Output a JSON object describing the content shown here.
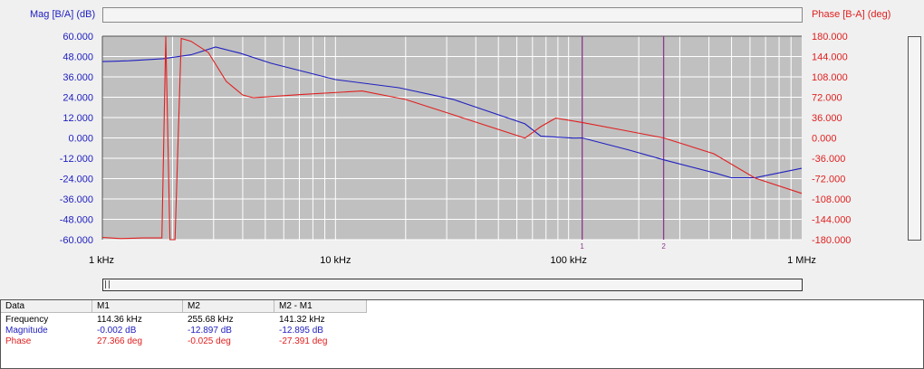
{
  "chart_data": {
    "type": "line",
    "left_axis_label": "Mag [B/A] (dB)",
    "right_axis_label": "Phase [B-A] (deg)",
    "x_scale": "log",
    "xlim_hz": [
      1000,
      1000000
    ],
    "x_ticks": [
      {
        "value": 1000,
        "label": "1 kHz"
      },
      {
        "value": 10000,
        "label": "10 kHz"
      },
      {
        "value": 100000,
        "label": "100 kHz"
      },
      {
        "value": 1000000,
        "label": "1 MHz"
      }
    ],
    "ylim_left": [
      -60,
      60
    ],
    "ylim_right": [
      -180,
      180
    ],
    "left_ticks": [
      "60.000",
      "48.000",
      "36.000",
      "24.000",
      "12.000",
      "0.000",
      "-12.000",
      "-24.000",
      "-36.000",
      "-48.000",
      "-60.000"
    ],
    "right_ticks": [
      "180.000",
      "144.000",
      "108.000",
      "72.000",
      "36.000",
      "0.000",
      "-36.000",
      "-72.000",
      "-108.000",
      "-144.000",
      "-180.000"
    ],
    "grid": true,
    "colors": {
      "magnitude": "#2020c0",
      "phase": "#e02020",
      "marker": "#8a3a8a",
      "plot_bg": "#c0c0c0",
      "grid": "#ffffff"
    },
    "series": [
      {
        "name": "Magnitude",
        "axis": "left",
        "x": [
          1000,
          1300,
          1820,
          2400,
          3060,
          3900,
          5300,
          10000,
          18700,
          32000,
          65000,
          76000,
          105000,
          114360,
          180000,
          255680,
          430000,
          500000,
          630000,
          1000000
        ],
        "y": [
          45,
          45.5,
          46.7,
          49,
          53.6,
          50,
          44,
          34.4,
          29.6,
          22.7,
          8.3,
          1,
          -0.1,
          -0.002,
          -7,
          -12.9,
          -20.9,
          -23.5,
          -23.5,
          -17.9
        ]
      },
      {
        "name": "Phase",
        "axis": "right",
        "x": [
          1000,
          1200,
          1500,
          1800,
          1870,
          1950,
          2050,
          2180,
          2400,
          2850,
          3400,
          4000,
          4450,
          7200,
          13000,
          20000,
          32000,
          65000,
          76000,
          88000,
          114360,
          180000,
          255680,
          420000,
          630000,
          1000000
        ],
        "y": [
          -176,
          -178,
          -177,
          -177,
          180,
          -180,
          -180,
          176,
          171,
          151,
          100,
          76,
          71,
          77,
          83,
          68,
          41,
          -0.3,
          20,
          35,
          27.366,
          12,
          -0.025,
          -28,
          -71,
          -98
        ]
      }
    ],
    "markers": [
      {
        "label": "1",
        "x": 114360
      },
      {
        "label": "2",
        "x": 255680
      }
    ]
  },
  "table": {
    "headers": [
      "Data",
      "M1",
      "M2",
      "M2 - M1"
    ],
    "rows": [
      {
        "label": "Frequency",
        "values": [
          "114.36 kHz",
          "255.68 kHz",
          "141.32 kHz"
        ]
      },
      {
        "label": "Magnitude",
        "values": [
          "-0.002 dB",
          "-12.897 dB",
          "-12.895 dB"
        ]
      },
      {
        "label": "Phase",
        "values": [
          "27.366 deg",
          "-0.025 deg",
          "-27.391 deg"
        ]
      }
    ]
  }
}
